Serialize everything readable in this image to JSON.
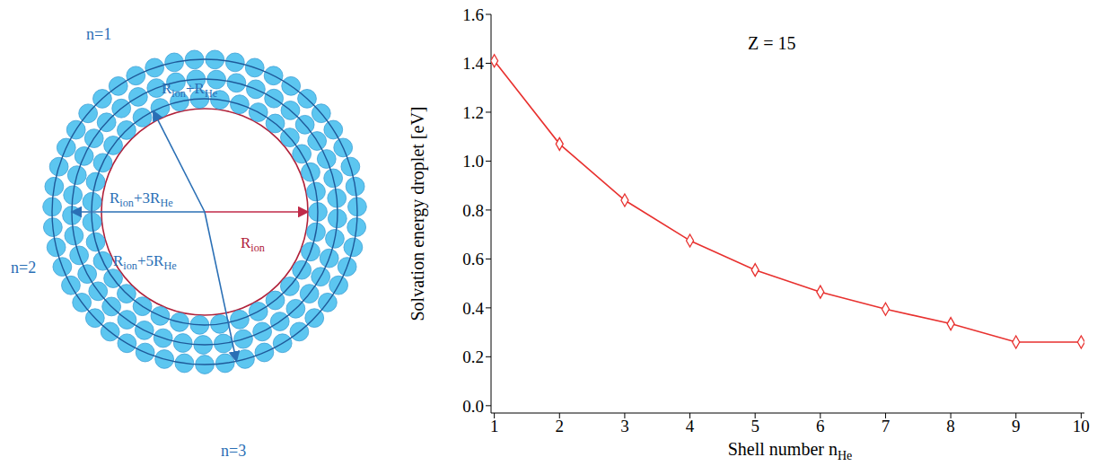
{
  "chart_data": {
    "type": "line",
    "annotation": "Z = 15",
    "x_label": [
      "Shell number n",
      "He"
    ],
    "y_label": "Solvation energy droplet [eV]",
    "x": [
      1,
      2,
      3,
      4,
      5,
      6,
      7,
      8,
      9,
      10
    ],
    "values": [
      1.41,
      1.07,
      0.84,
      0.675,
      0.555,
      0.465,
      0.395,
      0.335,
      0.26,
      0.26
    ],
    "color": "#e8312f",
    "marker": "diamond",
    "line_style": "solid",
    "xlim": [
      0.95,
      10.05
    ],
    "xticks": [
      1,
      2,
      3,
      4,
      5,
      6,
      7,
      8,
      9,
      10
    ],
    "ylim": [
      -0.03,
      1.6
    ],
    "yticks": [
      {
        "value": 0,
        "label": "0.0"
      },
      0.2,
      0.4,
      0.6,
      0.8,
      {
        "value": 1,
        "label": "1.0"
      },
      1.2,
      1.4,
      1.6
    ],
    "grid": false
  },
  "diagram": {
    "shells": [
      "n=1",
      "n=2",
      "n=3"
    ],
    "radius_labels": [
      [
        "R",
        "ion"
      ],
      [
        "R",
        "ion",
        "+R",
        "He"
      ],
      [
        "R",
        "ion",
        "+3R",
        "He"
      ],
      [
        "R",
        "ion",
        "+5R",
        "He"
      ]
    ]
  }
}
